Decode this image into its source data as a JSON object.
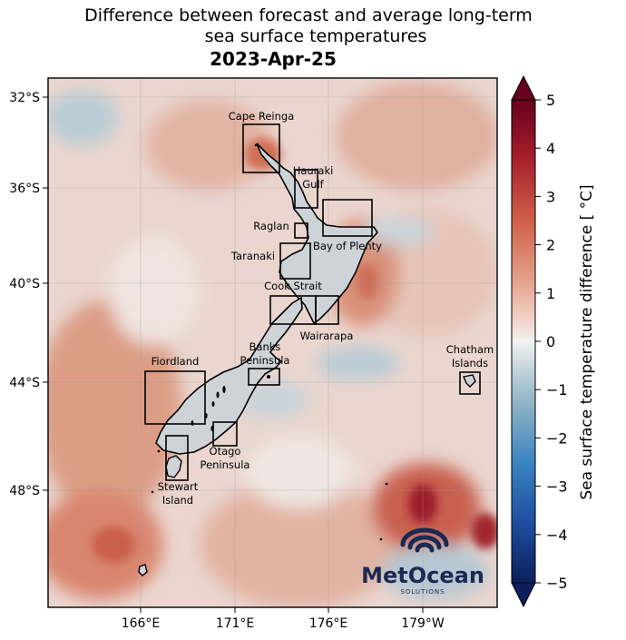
{
  "title_line1": "Difference between forecast and average long-term",
  "title_line2": "sea surface temperatures",
  "date": "2023-Apr-25",
  "lat_ticks": [
    "32°S",
    "36°S",
    "40°S",
    "44°S",
    "48°S"
  ],
  "lon_ticks": [
    "166°E",
    "171°E",
    "176°E",
    "179°W"
  ],
  "colorbar": {
    "label": "Sea surface temperature difference [$^\\circ$C]",
    "label_display": "Sea surface temperature difference [ °C]",
    "ticks": [
      "5",
      "4",
      "3",
      "2",
      "1",
      "0",
      "−1",
      "−2",
      "−3",
      "−4",
      "−5"
    ],
    "min": -5,
    "max": 5,
    "color_warm": "#67001f",
    "color_neutral": "#f2f2f2",
    "color_cold": "#0c1f5a"
  },
  "regions": [
    {
      "id": "cape-reinga",
      "label": "Cape Reinga"
    },
    {
      "id": "hauraki-gulf",
      "label": "Hauraki Gulf"
    },
    {
      "id": "raglan",
      "label": "Raglan"
    },
    {
      "id": "bay-of-plenty",
      "label": "Bay of Plenty"
    },
    {
      "id": "taranaki",
      "label": "Taranaki"
    },
    {
      "id": "cook-strait",
      "label": "Cook Strait"
    },
    {
      "id": "wairarapa",
      "label": "Wairarapa"
    },
    {
      "id": "banks-peninsula",
      "label": "Banks Peninsula"
    },
    {
      "id": "fiordland",
      "label": "Fiordland"
    },
    {
      "id": "otago-peninsula",
      "label": "Otago Peninsula"
    },
    {
      "id": "stewart-island",
      "label": "Stewart Island"
    },
    {
      "id": "chatham-islands",
      "label": "Chatham Islands"
    }
  ],
  "logo": {
    "brand": "MetOcean",
    "sub": "SOLUTIONS",
    "color": "#1b2a52"
  }
}
